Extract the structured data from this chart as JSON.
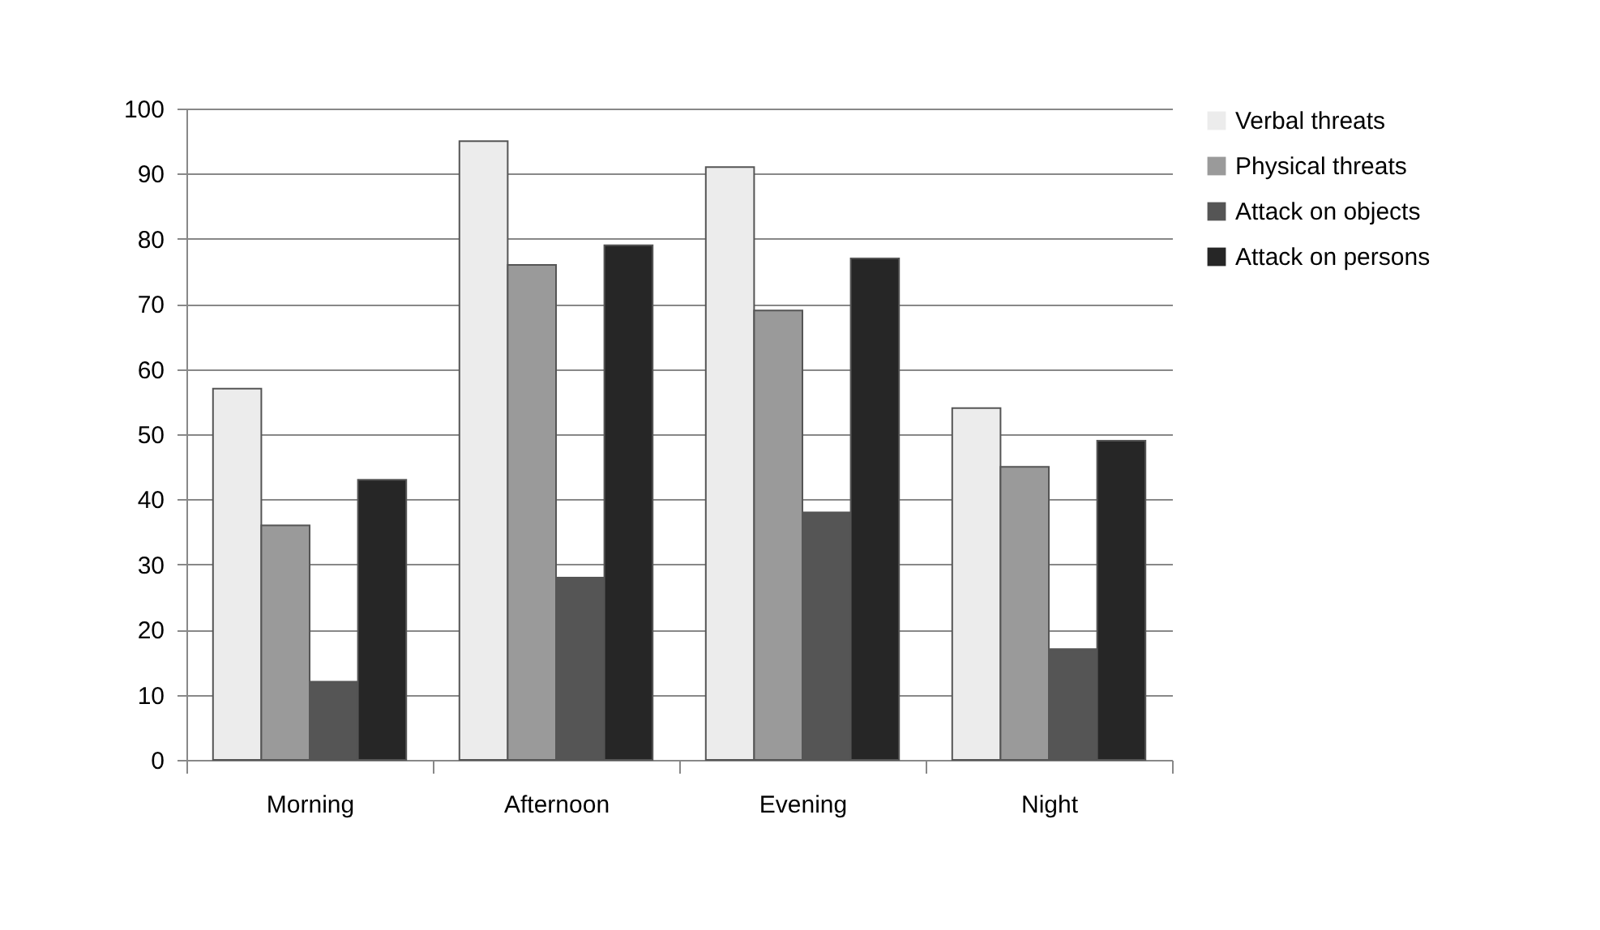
{
  "chart_data": {
    "type": "bar",
    "categories": [
      "Morning",
      "Afternoon",
      "Evening",
      "Night"
    ],
    "series": [
      {
        "name": "Verbal threats",
        "color": "#ececec",
        "values": [
          57,
          95,
          91,
          54
        ]
      },
      {
        "name": "Physical threats",
        "color": "#9a9a9a",
        "values": [
          36,
          76,
          69,
          45
        ]
      },
      {
        "name": "Attack on objects",
        "color": "#555555",
        "values": [
          12,
          28,
          38,
          17
        ]
      },
      {
        "name": "Attack on persons",
        "color": "#262626",
        "values": [
          43,
          79,
          77,
          49
        ]
      }
    ],
    "ylim": [
      0,
      100
    ],
    "yticks": [
      0,
      10,
      20,
      30,
      40,
      50,
      60,
      70,
      80,
      90,
      100
    ],
    "grid": "y",
    "legend": "right"
  }
}
